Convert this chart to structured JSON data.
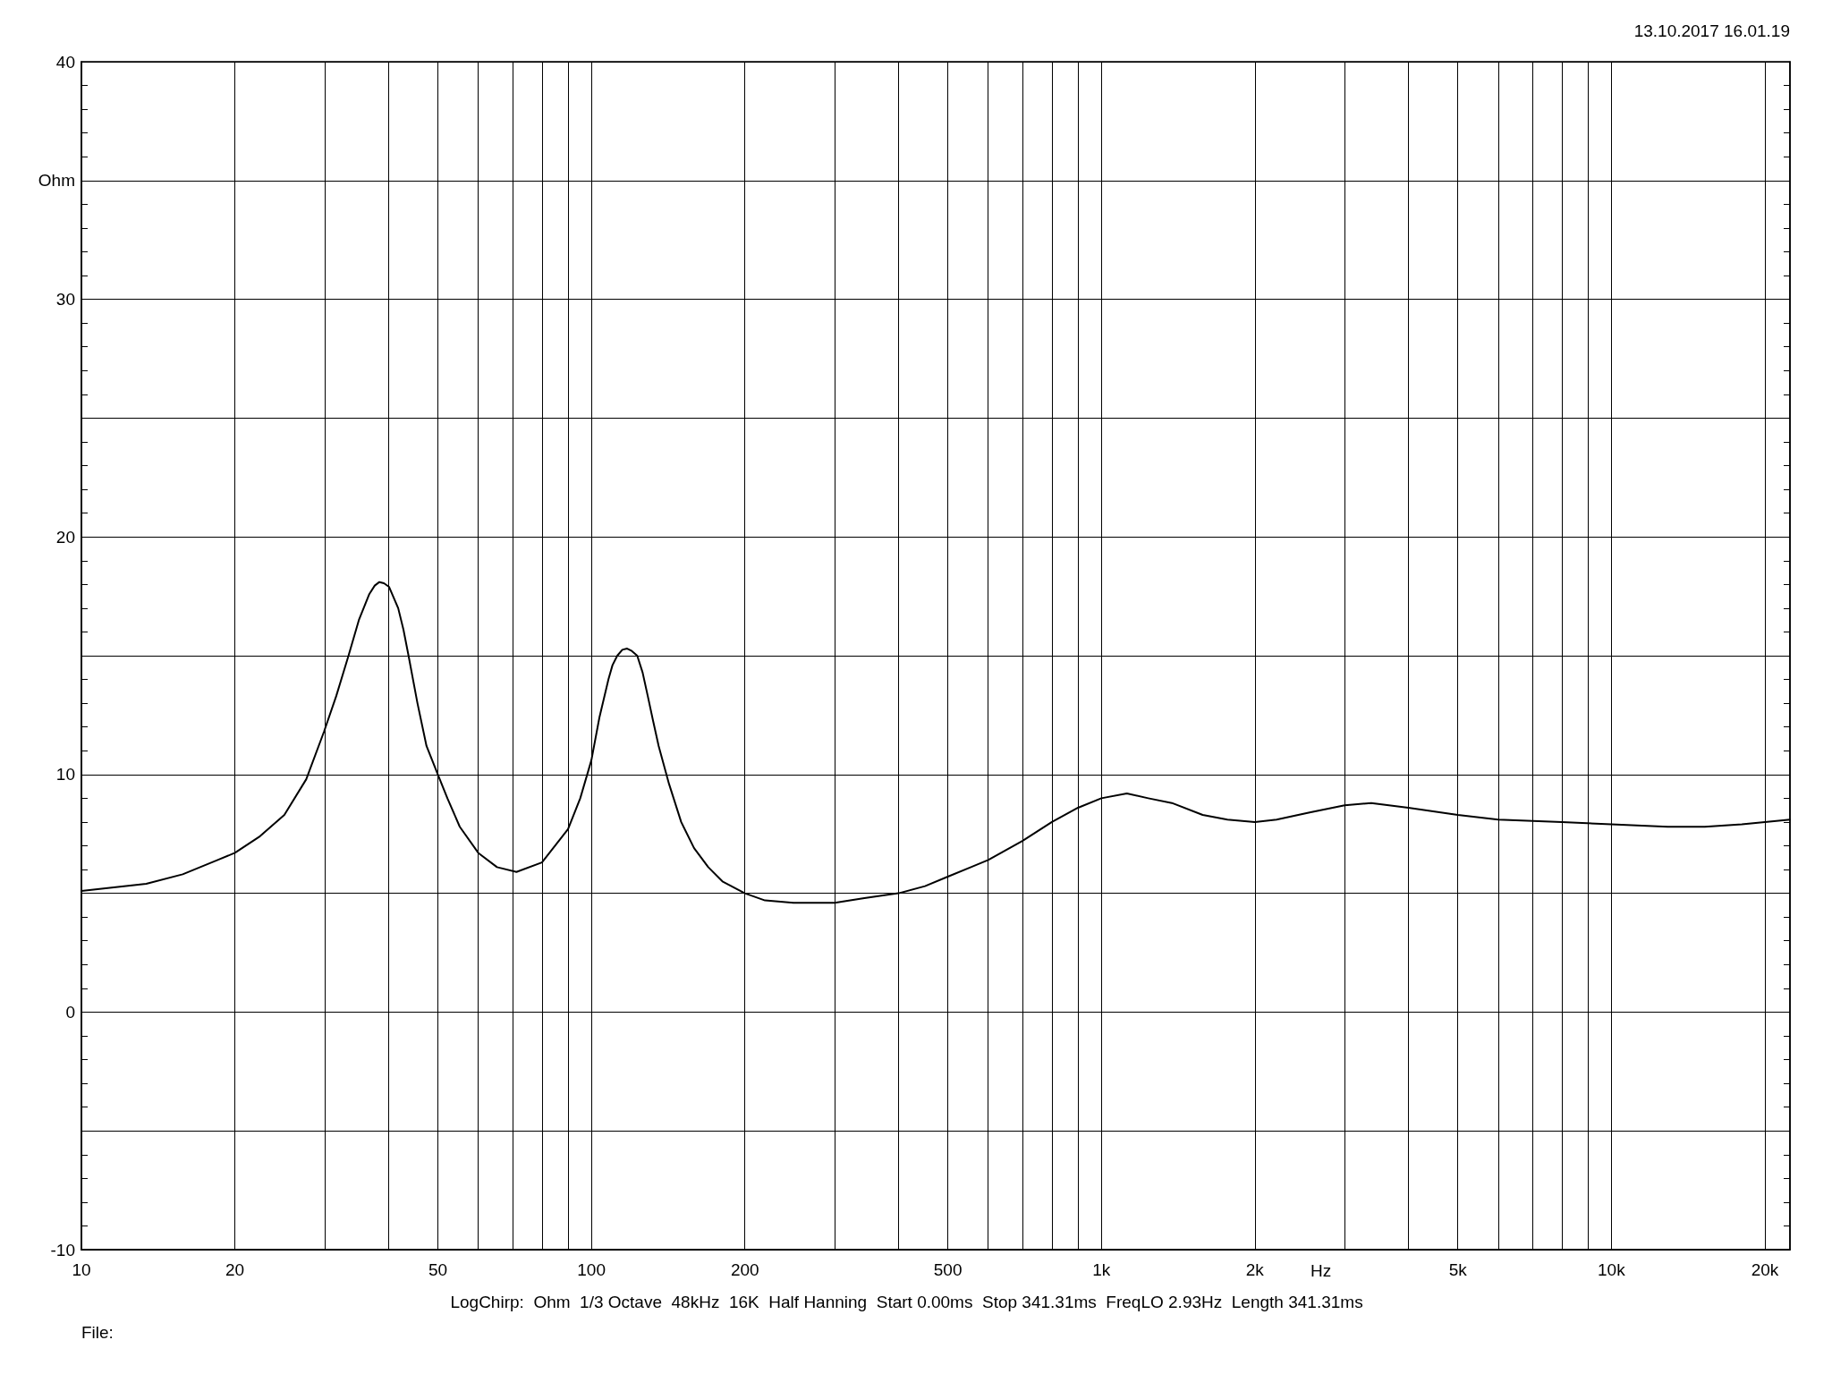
{
  "chart_data": {
    "type": "line",
    "xlabel": "Hz",
    "ylabel": "Ohm",
    "annotations": [
      "13.10.2017 16.01.19",
      "LogChirp:  Ohm  1/3 Octave  48kHz  16K  Half Hanning  Start 0.00ms  Stop 341.31ms  FreqLO 2.93Hz  Length 341.31ms",
      "File:"
    ],
    "series": [
      {
        "color": "#000000",
        "x": [
          10,
          13.4,
          15.8,
          18.5,
          20,
          22.4,
          25,
          27.6,
          29.9,
          31.6,
          33.4,
          35,
          36.7,
          37.6,
          38.4,
          39.2,
          40.1,
          41.8,
          42.8,
          43.8,
          45.6,
          47.5,
          50,
          52.2,
          55.2,
          60,
          65.3,
          71.3,
          80,
          90,
          95.1,
          100,
          103.7,
          108,
          110,
          112.4,
          115,
          117.5,
          120,
          123,
          126,
          129,
          132,
          135.5,
          142,
          150,
          159,
          169.5,
          180.7,
          200,
          219,
          249,
          274,
          300,
          343,
          400,
          451,
          500,
          555,
          600,
          700,
          800,
          900,
          1000,
          1122,
          1236,
          1375,
          1580,
          1767,
          2000,
          2206,
          2561,
          3000,
          3382,
          4000,
          5000,
          6000,
          8000,
          10000,
          12900,
          15250,
          18030,
          20000,
          22400
        ],
        "values": [
          5.1,
          5.4,
          5.8,
          6.4,
          6.7,
          7.4,
          8.3,
          9.8,
          11.8,
          13.3,
          15.0,
          16.5,
          17.6,
          17.95,
          18.1,
          18.05,
          17.9,
          17.0,
          16.1,
          15.0,
          13.0,
          11.2,
          10.0,
          9.0,
          7.8,
          6.7,
          6.1,
          5.9,
          6.3,
          7.7,
          9.0,
          10.6,
          12.4,
          14.0,
          14.6,
          15.0,
          15.25,
          15.3,
          15.2,
          15.0,
          14.3,
          13.3,
          12.3,
          11.2,
          9.6,
          8.0,
          6.9,
          6.1,
          5.5,
          5.0,
          4.7,
          4.6,
          4.6,
          4.6,
          4.8,
          5.0,
          5.3,
          5.7,
          6.1,
          6.4,
          7.2,
          8.0,
          8.6,
          9.0,
          9.2,
          9.0,
          8.8,
          8.3,
          8.1,
          8.0,
          8.1,
          8.4,
          8.7,
          8.8,
          8.6,
          8.3,
          8.1,
          8.0,
          7.9,
          7.8,
          7.8,
          7.9,
          8.0,
          8.1
        ]
      }
    ],
    "xlim": [
      10,
      22400
    ],
    "xticks": [
      10,
      20,
      {
        "value": 30,
        "label": null
      },
      {
        "value": 40,
        "label": null
      },
      50,
      {
        "value": 60,
        "label": null
      },
      {
        "value": 70,
        "label": null
      },
      {
        "value": 80,
        "label": null
      },
      {
        "value": 90,
        "label": null
      },
      100,
      200,
      {
        "value": 300,
        "label": null
      },
      {
        "value": 400,
        "label": null
      },
      500,
      {
        "value": 600,
        "label": null
      },
      {
        "value": 700,
        "label": null
      },
      {
        "value": 800,
        "label": null
      },
      {
        "value": 900,
        "label": null
      },
      {
        "value": 1000,
        "label": "1k"
      },
      {
        "value": 2000,
        "label": "2k"
      },
      {
        "value": 3000,
        "label": null
      },
      {
        "value": 4000,
        "label": null
      },
      {
        "value": 5000,
        "label": "5k"
      },
      {
        "value": 6000,
        "label": null
      },
      {
        "value": 7000,
        "label": null
      },
      {
        "value": 8000,
        "label": null
      },
      {
        "value": 9000,
        "label": null
      },
      {
        "value": 10000,
        "label": "10k"
      },
      {
        "value": 20000,
        "label": "20k"
      }
    ],
    "ylim": [
      -10,
      40
    ],
    "yticks": [
      -10,
      {
        "value": -5,
        "label": null
      },
      0,
      {
        "value": 5,
        "label": null
      },
      10,
      {
        "value": 15,
        "label": null
      },
      20,
      {
        "value": 25,
        "label": null
      },
      30,
      {
        "value": 35,
        "label": null
      },
      40
    ],
    "log": "x",
    "grid": true,
    "marker": "none",
    "line_style": "solid"
  }
}
